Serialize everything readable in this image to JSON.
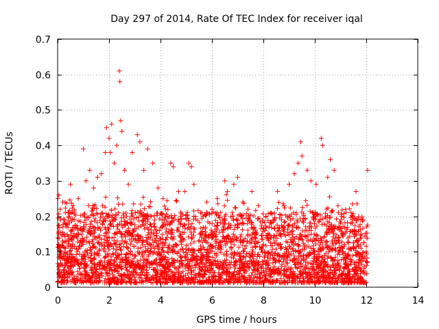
{
  "chart_data": {
    "type": "scatter",
    "title": "Day 297 of 2014, Rate Of TEC Index for receiver iqal",
    "xlabel": "GPS time / hours",
    "ylabel": "ROTI / TECUs",
    "xlim": [
      0,
      14
    ],
    "ylim": [
      0,
      0.7
    ],
    "xticks": [
      0,
      2,
      4,
      6,
      8,
      10,
      12,
      14
    ],
    "xtick_labels": [
      "0",
      "2",
      "4",
      "6",
      "8",
      "10",
      "12",
      "14"
    ],
    "yticks": [
      0,
      0.1,
      0.2,
      0.3,
      0.4,
      0.5,
      0.6,
      0.7
    ],
    "ytick_labels": [
      "0",
      "0.1",
      "0.2",
      "0.3",
      "0.4",
      "0.5",
      "0.6",
      "0.7"
    ],
    "grid": true,
    "marker": "+",
    "marker_color": "#ff0000",
    "series": [
      {
        "name": "ROTI",
        "points": [
          [
            0.05,
            0.26
          ],
          [
            0.1,
            0.22
          ],
          [
            0.2,
            0.24
          ],
          [
            0.3,
            0.21
          ],
          [
            0.5,
            0.29
          ],
          [
            0.6,
            0.23
          ],
          [
            0.8,
            0.25
          ],
          [
            1.0,
            0.39
          ],
          [
            1.1,
            0.3
          ],
          [
            1.25,
            0.33
          ],
          [
            1.4,
            0.28
          ],
          [
            1.55,
            0.31
          ],
          [
            1.7,
            0.32
          ],
          [
            1.85,
            0.38
          ],
          [
            1.9,
            0.45
          ],
          [
            2.0,
            0.42
          ],
          [
            2.05,
            0.38
          ],
          [
            2.1,
            0.46
          ],
          [
            2.2,
            0.35
          ],
          [
            2.3,
            0.4
          ],
          [
            2.4,
            0.61
          ],
          [
            2.42,
            0.58
          ],
          [
            2.45,
            0.47
          ],
          [
            2.5,
            0.44
          ],
          [
            2.6,
            0.33
          ],
          [
            2.75,
            0.29
          ],
          [
            2.9,
            0.38
          ],
          [
            3.1,
            0.43
          ],
          [
            3.2,
            0.41
          ],
          [
            3.35,
            0.33
          ],
          [
            3.5,
            0.39
          ],
          [
            3.7,
            0.35
          ],
          [
            3.9,
            0.28
          ],
          [
            4.1,
            0.25
          ],
          [
            4.4,
            0.35
          ],
          [
            4.5,
            0.34
          ],
          [
            4.7,
            0.27
          ],
          [
            4.95,
            0.27
          ],
          [
            5.1,
            0.35
          ],
          [
            5.2,
            0.34
          ],
          [
            5.3,
            0.29
          ],
          [
            5.6,
            0.21
          ],
          [
            5.8,
            0.24
          ],
          [
            6.0,
            0.22
          ],
          [
            6.2,
            0.25
          ],
          [
            6.5,
            0.3
          ],
          [
            6.6,
            0.27
          ],
          [
            6.85,
            0.29
          ],
          [
            7.0,
            0.31
          ],
          [
            7.2,
            0.24
          ],
          [
            7.4,
            0.22
          ],
          [
            7.55,
            0.27
          ],
          [
            7.8,
            0.23
          ],
          [
            8.1,
            0.2
          ],
          [
            8.3,
            0.21
          ],
          [
            8.55,
            0.27
          ],
          [
            8.8,
            0.23
          ],
          [
            9.0,
            0.29
          ],
          [
            9.2,
            0.32
          ],
          [
            9.35,
            0.35
          ],
          [
            9.45,
            0.41
          ],
          [
            9.5,
            0.37
          ],
          [
            9.7,
            0.33
          ],
          [
            9.85,
            0.3
          ],
          [
            10.05,
            0.29
          ],
          [
            10.25,
            0.42
          ],
          [
            10.3,
            0.4
          ],
          [
            10.5,
            0.31
          ],
          [
            10.6,
            0.36
          ],
          [
            10.75,
            0.33
          ],
          [
            10.9,
            0.23
          ],
          [
            11.2,
            0.22
          ],
          [
            11.45,
            0.2
          ],
          [
            11.6,
            0.27
          ],
          [
            11.85,
            0.19
          ],
          [
            12.05,
            0.33
          ]
        ]
      }
    ]
  }
}
